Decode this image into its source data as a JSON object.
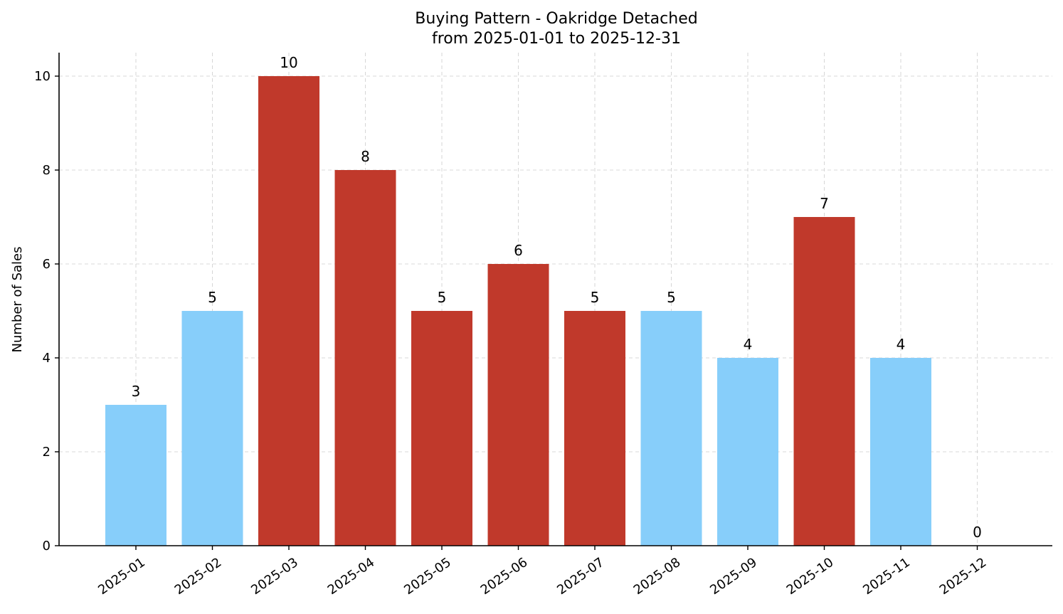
{
  "chart_data": {
    "type": "bar",
    "title": "Buying Pattern - Oakridge Detached",
    "subtitle": "from 2025-01-01 to 2025-12-31",
    "xlabel": "",
    "ylabel": "Number of Sales",
    "categories": [
      "2025-01",
      "2025-02",
      "2025-03",
      "2025-04",
      "2025-05",
      "2025-06",
      "2025-07",
      "2025-08",
      "2025-09",
      "2025-10",
      "2025-11",
      "2025-12"
    ],
    "values": [
      3,
      5,
      10,
      8,
      5,
      6,
      5,
      5,
      4,
      7,
      4,
      0
    ],
    "highlighted": [
      false,
      false,
      true,
      true,
      true,
      true,
      true,
      false,
      false,
      true,
      false,
      false
    ],
    "colors": {
      "normal": "#87CEFA",
      "highlight": "#C0392B"
    },
    "ylim": [
      0,
      10.5
    ],
    "yticks": [
      0,
      2,
      4,
      6,
      8,
      10
    ],
    "grid": true
  }
}
